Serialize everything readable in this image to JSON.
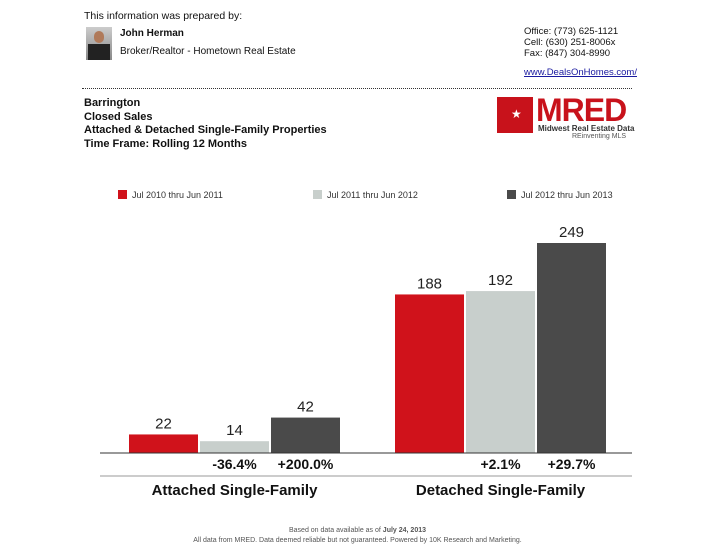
{
  "header": {
    "prepared_by": "This information was prepared by:",
    "agent_name": "John Herman",
    "agent_title": "Broker/Realtor - Hometown Real Estate",
    "office": "Office: (773) 625-1121",
    "cell": "Cell: (630) 251-8006x",
    "fax": "Fax: (847) 304-8990",
    "website": "www.DealsOnHomes.com/"
  },
  "report": {
    "area": "Barrington",
    "metric": "Closed Sales",
    "property_types": "Attached & Detached Single-Family Properties",
    "time_frame": "Time Frame: Rolling 12 Months"
  },
  "logo": {
    "name": "MRED",
    "tagline": "Midwest Real Estate Data",
    "slogan": "REinventing MLS"
  },
  "chart_data": {
    "type": "bar",
    "categories": [
      "Attached Single-Family",
      "Detached Single-Family"
    ],
    "series": [
      {
        "name": "Jul 2010 thru Jun 2011",
        "color": "#d0121b",
        "values": [
          22,
          188
        ]
      },
      {
        "name": "Jul 2011 thru Jun 2012",
        "color": "#c8cfcc",
        "values": [
          14,
          192
        ],
        "change_labels": [
          "-36.4%",
          "+2.1%"
        ]
      },
      {
        "name": "Jul 2012 thru Jun 2013",
        "color": "#4a4a4a",
        "values": [
          42,
          249
        ],
        "change_labels": [
          "+200.0%",
          "+29.7%"
        ]
      }
    ]
  },
  "footer": {
    "basis": "Based on data available as of",
    "date": "July 24, 2013",
    "disclaimer": "All data from MRED. Data deemed reliable but not guaranteed. Powered by 10K Research and Marketing."
  }
}
